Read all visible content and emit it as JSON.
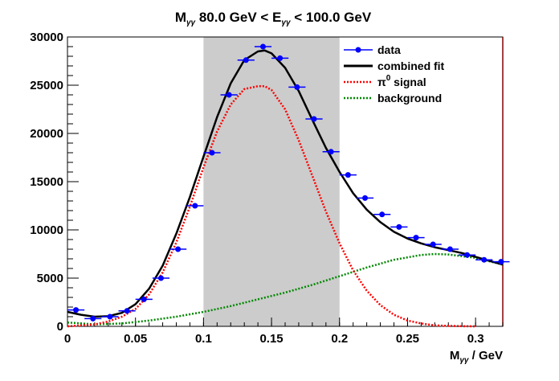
{
  "chart_data": {
    "type": "line",
    "title": {
      "main": "M",
      "main_sub": "γγ",
      "middle": " 80.0 GeV < E",
      "middle_sub": "γγ",
      "tail": " < 100.0 GeV"
    },
    "xlabel": {
      "main": "M",
      "sub": "γγ",
      "tail": " / GeV"
    },
    "ylabel": "",
    "xlim": [
      0,
      0.32
    ],
    "ylim": [
      0,
      30000
    ],
    "x_ticks": [
      0,
      0.05,
      0.1,
      0.15,
      0.2,
      0.25,
      0.3
    ],
    "x_tick_labels": [
      "0",
      "0.05",
      "0.1",
      "0.15",
      "0.2",
      "0.25",
      "0.3"
    ],
    "y_ticks": [
      0,
      5000,
      10000,
      15000,
      20000,
      25000,
      30000
    ],
    "y_tick_labels": [
      "0",
      "5000",
      "10000",
      "15000",
      "20000",
      "25000",
      "30000"
    ],
    "shaded_region": {
      "x_from": 0.1,
      "x_to": 0.2,
      "color": "#cccccc"
    },
    "legend": {
      "position": "top-right",
      "entries": [
        {
          "label": "data",
          "style": "marker",
          "color": "#0000ff"
        },
        {
          "label": "combined fit",
          "style": "solid",
          "color": "#000000"
        },
        {
          "label": "signal",
          "prefix": "π",
          "sup": "0",
          "style": "dotted",
          "color": "#ff0000"
        },
        {
          "label": "background",
          "style": "dotted",
          "color": "#008800"
        }
      ]
    },
    "series": [
      {
        "name": "data",
        "style": "points",
        "color": "#0000ff",
        "bin_half_width": 0.00625,
        "x": [
          0.00625,
          0.01875,
          0.03125,
          0.04375,
          0.05625,
          0.06875,
          0.08125,
          0.09375,
          0.10625,
          0.11875,
          0.13125,
          0.14375,
          0.15625,
          0.16875,
          0.18125,
          0.19375,
          0.20625,
          0.21875,
          0.23125,
          0.24375,
          0.25625,
          0.26875,
          0.28125,
          0.29375,
          0.30625,
          0.31875
        ],
        "y": [
          1700,
          800,
          1000,
          1600,
          2800,
          5000,
          8000,
          12500,
          18000,
          24000,
          27600,
          29000,
          27800,
          24800,
          21500,
          18100,
          15700,
          13300,
          11600,
          10300,
          9200,
          8500,
          8000,
          7400,
          6900,
          6700
        ]
      },
      {
        "name": "combined fit",
        "style": "solid",
        "color": "#000000",
        "x": [
          0.0,
          0.01,
          0.02,
          0.03,
          0.04,
          0.05,
          0.06,
          0.07,
          0.08,
          0.09,
          0.1,
          0.11,
          0.12,
          0.13,
          0.14,
          0.145,
          0.15,
          0.16,
          0.17,
          0.18,
          0.19,
          0.2,
          0.21,
          0.22,
          0.23,
          0.24,
          0.25,
          0.26,
          0.27,
          0.28,
          0.29,
          0.3,
          0.31,
          0.32
        ],
        "y": [
          1500,
          1200,
          1000,
          1050,
          1400,
          2300,
          3900,
          6300,
          9600,
          13400,
          17600,
          21700,
          25200,
          27600,
          28500,
          28600,
          28300,
          26800,
          24400,
          21400,
          18500,
          16000,
          13800,
          12100,
          10800,
          9800,
          9100,
          8600,
          8200,
          7900,
          7600,
          7200,
          6800,
          6400
        ]
      },
      {
        "name": "π0 signal",
        "style": "dotted",
        "color": "#ff0000",
        "x": [
          0.0,
          0.01,
          0.02,
          0.03,
          0.04,
          0.05,
          0.06,
          0.07,
          0.08,
          0.09,
          0.1,
          0.11,
          0.12,
          0.13,
          0.14,
          0.145,
          0.15,
          0.16,
          0.17,
          0.18,
          0.19,
          0.2,
          0.21,
          0.22,
          0.23,
          0.24,
          0.25,
          0.26,
          0.27,
          0.28,
          0.29,
          0.3
        ],
        "y": [
          0,
          100,
          200,
          500,
          1000,
          1800,
          3300,
          5600,
          8700,
          12400,
          16500,
          20200,
          23000,
          24600,
          24900,
          24900,
          24500,
          22500,
          19300,
          15600,
          11900,
          8600,
          5800,
          3700,
          2200,
          1200,
          600,
          300,
          100,
          50,
          20,
          0
        ]
      },
      {
        "name": "background",
        "style": "dotted",
        "color": "#008800",
        "x": [
          0.0,
          0.02,
          0.04,
          0.06,
          0.08,
          0.1,
          0.12,
          0.14,
          0.16,
          0.18,
          0.2,
          0.22,
          0.24,
          0.26,
          0.27,
          0.28,
          0.3,
          0.32
        ],
        "y": [
          400,
          200,
          300,
          600,
          1000,
          1500,
          2100,
          2800,
          3500,
          4300,
          5200,
          6100,
          6900,
          7400,
          7500,
          7450,
          7100,
          6400
        ]
      }
    ]
  }
}
